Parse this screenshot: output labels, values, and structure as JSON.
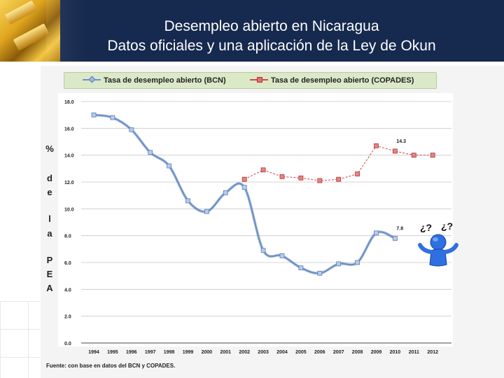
{
  "header": {
    "title_line1": "Desempleo abierto en Nicaragua",
    "title_line2": "Datos oficiales y una aplicación de la Ley de Okun"
  },
  "colors": {
    "bcn": "#6b8fc9",
    "copades": "#d04a4a",
    "header_bg": "#16294e",
    "legend_bg": "#dce9c9"
  },
  "ylabel_chars": [
    "%",
    "d",
    "e",
    "l",
    "a",
    "P",
    "E",
    "A"
  ],
  "source": "Fuente: con base en datos del BCN y COPADES.",
  "figure_icon": "confused-person-icon",
  "chart_data": {
    "type": "line",
    "title": "",
    "ylabel": "% de la PEA",
    "xlabel": "",
    "ylim": [
      0,
      18
    ],
    "yticks": [
      "0.0",
      "2.0",
      "4.0",
      "6.0",
      "8.0",
      "10.0",
      "12.0",
      "14.0",
      "16.0",
      "18.0"
    ],
    "categories": [
      "1994",
      "1995",
      "1996",
      "1997",
      "1998",
      "1999",
      "2000",
      "2001",
      "2002",
      "2003",
      "2004",
      "2005",
      "2006",
      "2007",
      "2008",
      "2009",
      "2010",
      "2011",
      "2012"
    ],
    "legend_position": "top",
    "grid": "horizontal",
    "series": [
      {
        "name": "Tasa de desempleo abierto (BCN)",
        "values": [
          17.0,
          16.8,
          15.9,
          14.2,
          13.2,
          10.6,
          9.8,
          11.2,
          11.6,
          6.9,
          6.5,
          5.6,
          5.2,
          5.9,
          6.0,
          8.2,
          7.8,
          null,
          null
        ],
        "end_label": "7.8"
      },
      {
        "name": "Tasa de desempleo abierto (COPADES)",
        "values": [
          null,
          null,
          null,
          null,
          null,
          null,
          null,
          null,
          12.2,
          12.9,
          12.4,
          12.3,
          12.1,
          12.2,
          12.6,
          14.7,
          14.3,
          14.0,
          14.0
        ],
        "end_label": "14.3"
      }
    ]
  }
}
